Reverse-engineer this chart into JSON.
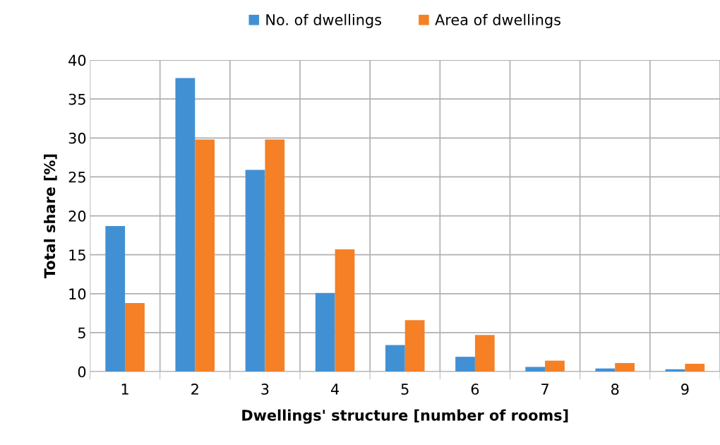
{
  "chart_data": {
    "type": "bar",
    "categories": [
      "1",
      "2",
      "3",
      "4",
      "5",
      "6",
      "7",
      "8",
      "9"
    ],
    "series": [
      {
        "name": "No. of dwellings",
        "color": "#4290d4",
        "values": [
          18.7,
          37.7,
          25.9,
          10.1,
          3.4,
          1.9,
          0.6,
          0.4,
          0.3
        ]
      },
      {
        "name": "Area of dwellings",
        "color": "#f58025",
        "values": [
          8.8,
          29.8,
          29.8,
          15.7,
          6.6,
          4.7,
          1.4,
          1.1,
          1.0
        ]
      }
    ],
    "xlabel": "Dwellings' structure [number of rooms]",
    "ylabel": "Total share [%]",
    "ylim": [
      0,
      40
    ],
    "yticks": [
      0,
      5,
      10,
      15,
      20,
      25,
      30,
      35,
      40
    ],
    "grid": true,
    "legend": "top"
  }
}
